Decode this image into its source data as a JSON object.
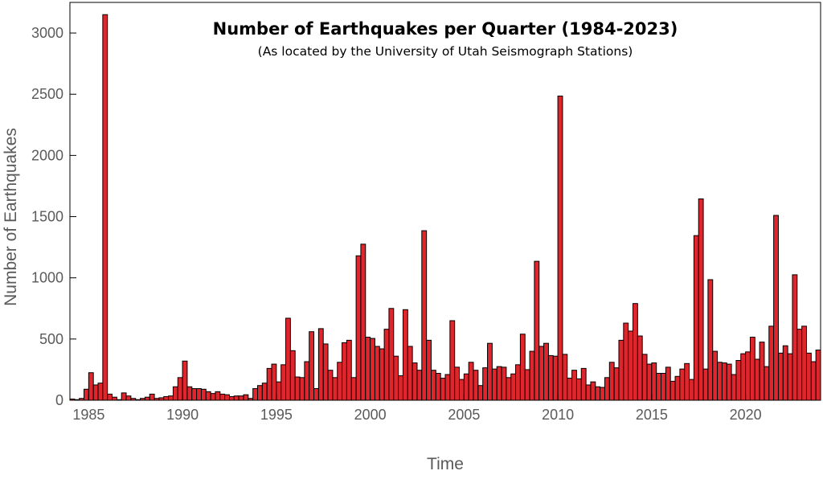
{
  "chart_data": {
    "type": "bar",
    "title": "Number of Earthquakes per Quarter (1984-2023)",
    "subtitle": "(As located by the University of Utah Seismograph Stations)",
    "xlabel": "Time",
    "ylabel": "Number of Earthquakes",
    "xlim": [
      1984,
      2024
    ],
    "ylim": [
      0,
      3250
    ],
    "xticks": [
      1985,
      1990,
      1995,
      2000,
      2005,
      2010,
      2015,
      2020
    ],
    "yticks": [
      0,
      500,
      1000,
      1500,
      2000,
      2500,
      3000
    ],
    "grid": false,
    "bar_color": "#e0262c",
    "bar_edge_color": "#000000",
    "x": [
      1984.0,
      1984.25,
      1984.5,
      1984.75,
      1985.0,
      1985.25,
      1985.5,
      1985.75,
      1986.0,
      1986.25,
      1986.5,
      1986.75,
      1987.0,
      1987.25,
      1987.5,
      1987.75,
      1988.0,
      1988.25,
      1988.5,
      1988.75,
      1989.0,
      1989.25,
      1989.5,
      1989.75,
      1990.0,
      1990.25,
      1990.5,
      1990.75,
      1991.0,
      1991.25,
      1991.5,
      1991.75,
      1992.0,
      1992.25,
      1992.5,
      1992.75,
      1993.0,
      1993.25,
      1993.5,
      1993.75,
      1994.0,
      1994.25,
      1994.5,
      1994.75,
      1995.0,
      1995.25,
      1995.5,
      1995.75,
      1996.0,
      1996.25,
      1996.5,
      1996.75,
      1997.0,
      1997.25,
      1997.5,
      1997.75,
      1998.0,
      1998.25,
      1998.5,
      1998.75,
      1999.0,
      1999.25,
      1999.5,
      1999.75,
      2000.0,
      2000.25,
      2000.5,
      2000.75,
      2001.0,
      2001.25,
      2001.5,
      2001.75,
      2002.0,
      2002.25,
      2002.5,
      2002.75,
      2003.0,
      2003.25,
      2003.5,
      2003.75,
      2004.0,
      2004.25,
      2004.5,
      2004.75,
      2005.0,
      2005.25,
      2005.5,
      2005.75,
      2006.0,
      2006.25,
      2006.5,
      2006.75,
      2007.0,
      2007.25,
      2007.5,
      2007.75,
      2008.0,
      2008.25,
      2008.5,
      2008.75,
      2009.0,
      2009.25,
      2009.5,
      2009.75,
      2010.0,
      2010.25,
      2010.5,
      2010.75,
      2011.0,
      2011.25,
      2011.5,
      2011.75,
      2012.0,
      2012.25,
      2012.5,
      2012.75,
      2013.0,
      2013.25,
      2013.5,
      2013.75,
      2014.0,
      2014.25,
      2014.5,
      2014.75,
      2015.0,
      2015.25,
      2015.5,
      2015.75,
      2016.0,
      2016.25,
      2016.5,
      2016.75,
      2017.0,
      2017.25,
      2017.5,
      2017.75,
      2018.0,
      2018.25,
      2018.5,
      2018.75,
      2019.0,
      2019.25,
      2019.5,
      2019.75,
      2020.0,
      2020.25,
      2020.5,
      2020.75,
      2021.0,
      2021.25,
      2021.5,
      2021.75,
      2022.0,
      2022.25,
      2022.5,
      2022.75,
      2023.0,
      2023.25,
      2023.5,
      2023.75
    ],
    "values": [
      10,
      5,
      15,
      90,
      225,
      125,
      140,
      3150,
      50,
      25,
      5,
      60,
      35,
      15,
      5,
      15,
      25,
      50,
      15,
      20,
      30,
      35,
      110,
      185,
      320,
      110,
      95,
      95,
      90,
      70,
      55,
      70,
      50,
      45,
      30,
      35,
      35,
      45,
      15,
      95,
      120,
      140,
      260,
      295,
      150,
      290,
      670,
      405,
      190,
      185,
      315,
      560,
      95,
      585,
      460,
      245,
      185,
      310,
      470,
      490,
      185,
      1180,
      1275,
      515,
      505,
      440,
      420,
      580,
      750,
      360,
      200,
      740,
      440,
      305,
      245,
      1385,
      490,
      245,
      220,
      180,
      210,
      650,
      270,
      170,
      215,
      310,
      245,
      120,
      265,
      465,
      255,
      275,
      270,
      185,
      215,
      290,
      540,
      250,
      400,
      1135,
      440,
      465,
      365,
      360,
      2485,
      375,
      180,
      245,
      175,
      260,
      125,
      150,
      110,
      105,
      185,
      310,
      265,
      490,
      630,
      565,
      790,
      525,
      375,
      295,
      305,
      220,
      220,
      270,
      155,
      195,
      255,
      300,
      170,
      1345,
      1645,
      255,
      985,
      400,
      310,
      305,
      295,
      210,
      325,
      380,
      395,
      515,
      335,
      475,
      275,
      605,
      1510,
      385,
      445,
      380,
      1025,
      580,
      605,
      385,
      315,
      410
    ]
  }
}
